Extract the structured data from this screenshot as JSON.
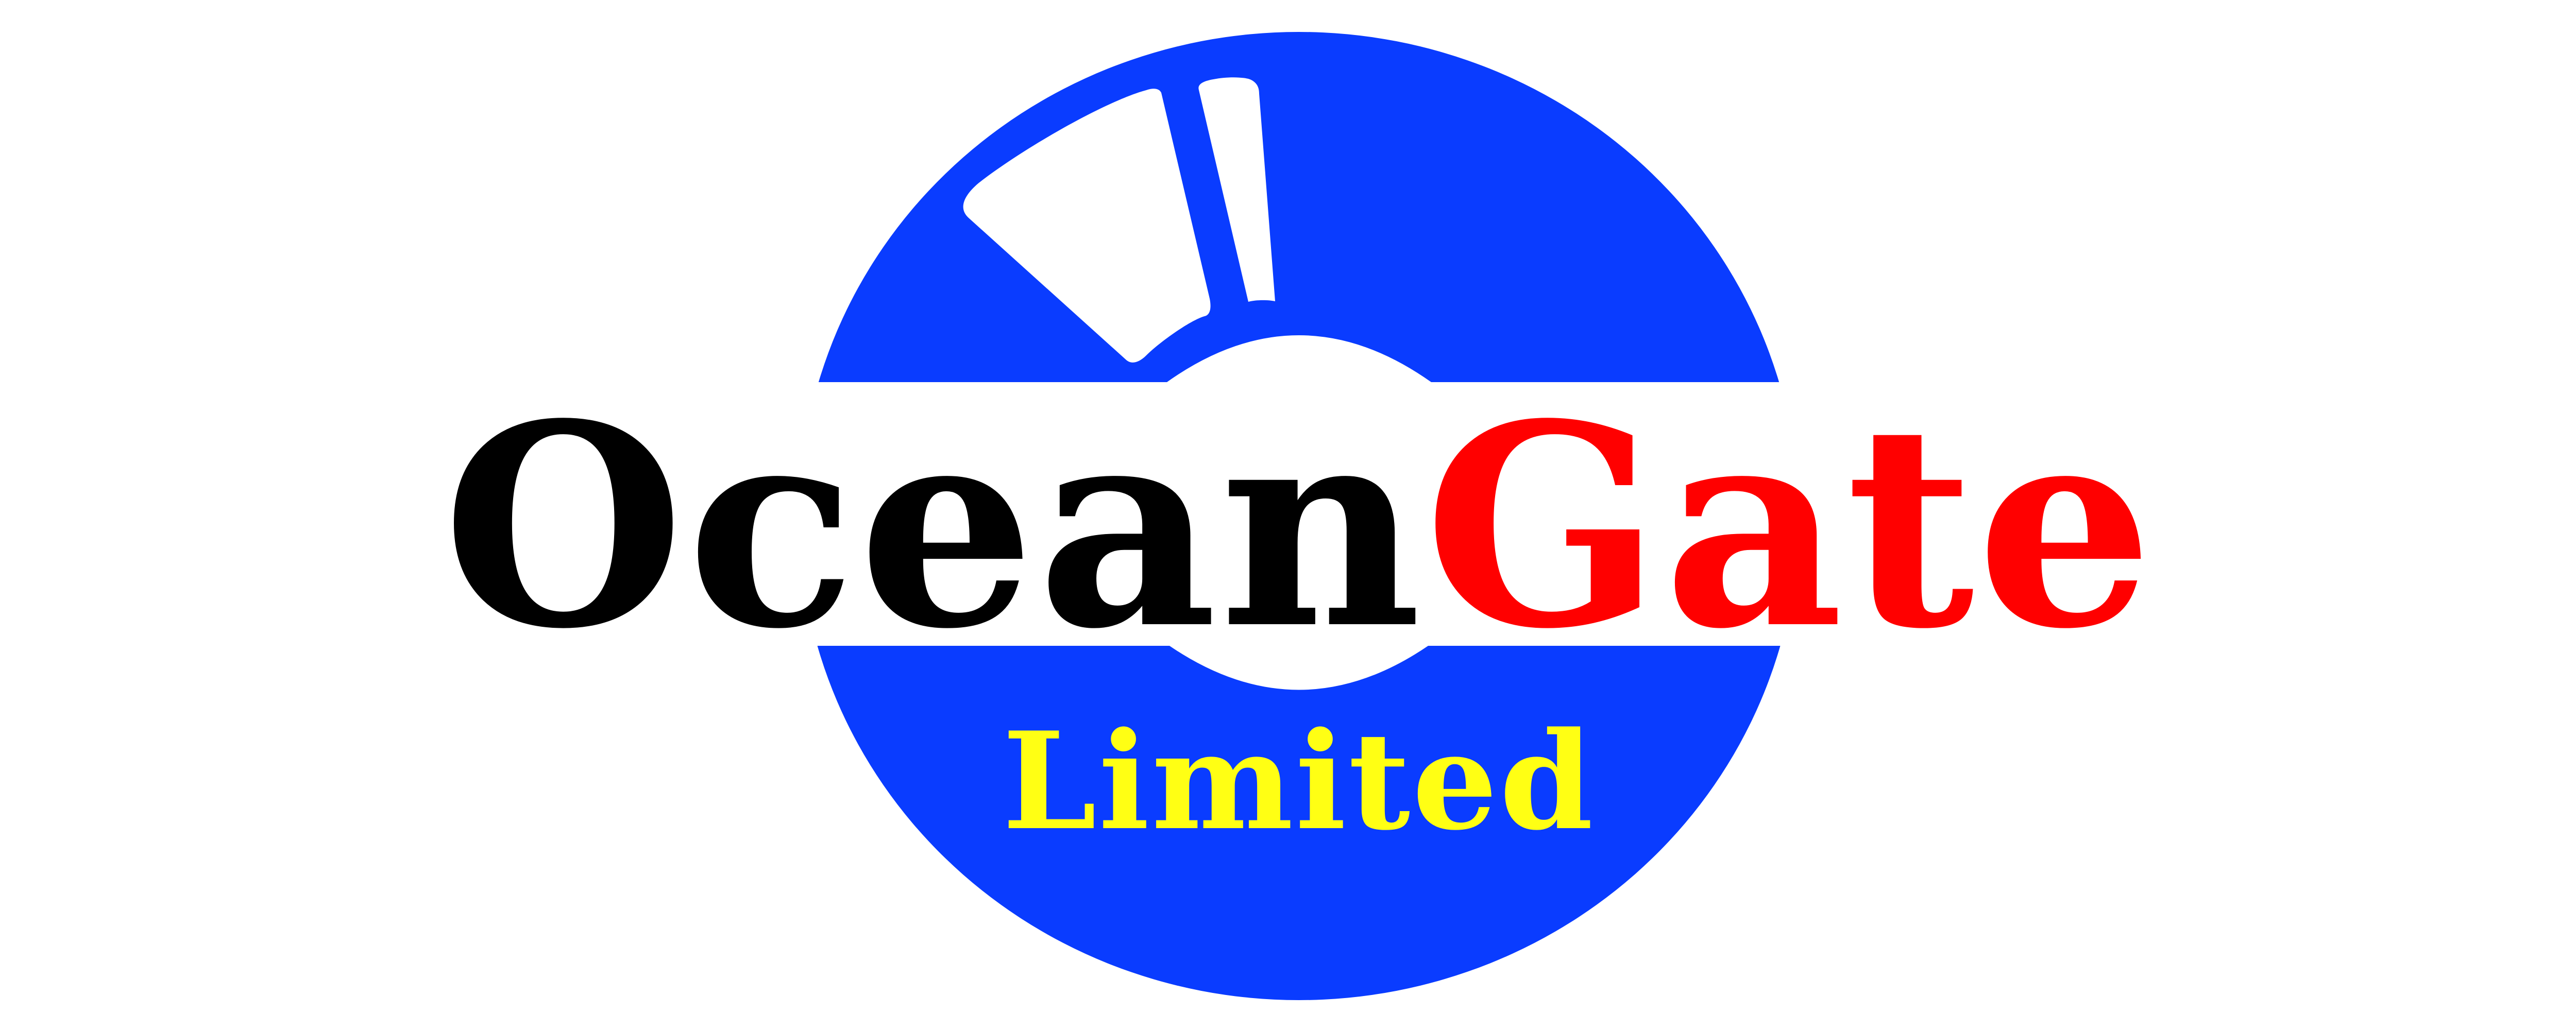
{
  "logo": {
    "brand_first": "Ocean",
    "brand_second": "Gate",
    "tagline": "Limited",
    "colors": {
      "disc_blue": "#0a3cff",
      "band_white": "#ffffff",
      "text_black": "#000000",
      "text_red": "#ff0000",
      "text_yellow": "#ffff14"
    },
    "mark_icon": "searchlight-beams-icon"
  }
}
